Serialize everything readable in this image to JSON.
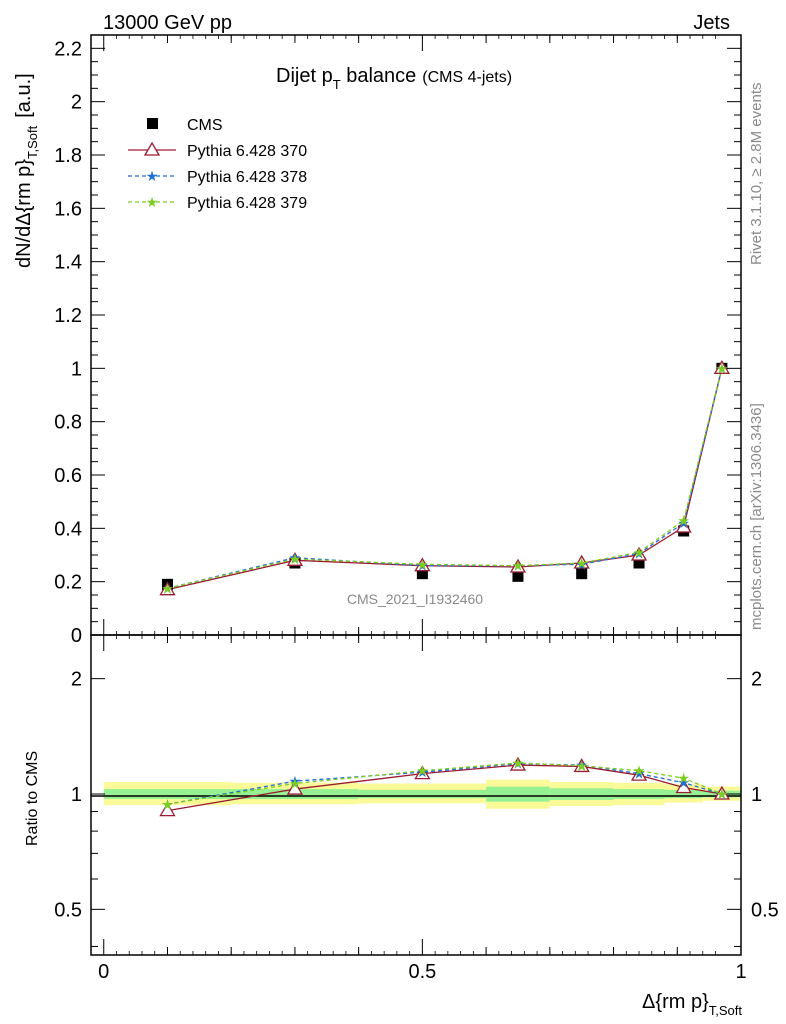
{
  "header": {
    "left": "13000 GeV pp",
    "right": "Jets"
  },
  "side_labels": {
    "rivet": "Rivet 3.1.10, ≥ 2.8M events",
    "mcplots": "mcplots.cern.ch [arXiv:1306.3436]"
  },
  "watermark": "CMS_2021_I1932460",
  "chart_data": [
    {
      "type": "line",
      "title_main": "Dijet p",
      "title_sub": "T",
      "title_rest": " balance",
      "title_small": "(CMS 4-jets)",
      "ylabel_main": "dN/dΔ{rm p}",
      "ylabel_sub": "T,Soft",
      "ylabel_unit": "[a.u.]",
      "ylim": [
        0,
        2.25
      ],
      "yticks": [
        0,
        0.2,
        0.4,
        0.6,
        0.8,
        1,
        1.2,
        1.4,
        1.6,
        1.8,
        2,
        2.2
      ],
      "ytick_labels": [
        "0",
        "0.2",
        "0.4",
        "0.6",
        "0.8",
        "1",
        "1.2",
        "1.4",
        "1.6",
        "1.8",
        "2",
        "2.2"
      ],
      "xlim": [
        -0.02,
        1.0
      ],
      "x": [
        0.1,
        0.3,
        0.5,
        0.65,
        0.75,
        0.84,
        0.91,
        0.97
      ],
      "legend_position": "top-left",
      "series": [
        {
          "name": "CMS",
          "color": "#000000",
          "marker": "square",
          "values": [
            0.19,
            0.27,
            0.23,
            0.22,
            0.23,
            0.27,
            0.39,
            1.0
          ]
        },
        {
          "name": "Pythia 6.428 370",
          "color": "#9b1b30",
          "marker": "triangle",
          "values": [
            0.17,
            0.28,
            0.26,
            0.255,
            0.27,
            0.3,
            0.405,
            1.0
          ]
        },
        {
          "name": "Pythia 6.428 378",
          "color": "#1f6fd6",
          "marker": "star",
          "values": [
            0.175,
            0.29,
            0.26,
            0.26,
            0.265,
            0.305,
            0.42,
            1.0
          ]
        },
        {
          "name": "Pythia 6.428 379",
          "color": "#7ccd1f",
          "marker": "star",
          "values": [
            0.175,
            0.285,
            0.265,
            0.26,
            0.27,
            0.31,
            0.43,
            1.0
          ]
        }
      ]
    },
    {
      "type": "line",
      "ylabel": "Ratio to CMS",
      "xlabel_main": "Δ{rm p}",
      "xlabel_sub": "T,Soft",
      "yscale": "log",
      "ylim": [
        0.38,
        2.6
      ],
      "yticks": [
        0.5,
        1,
        2
      ],
      "ytick_labels": [
        "0.5",
        "1",
        "2"
      ],
      "xlim": [
        -0.02,
        1.0
      ],
      "xticks": [
        0,
        0.5,
        1
      ],
      "xtick_labels": [
        "0",
        "0.5",
        "1"
      ],
      "x": [
        0.1,
        0.3,
        0.5,
        0.65,
        0.75,
        0.84,
        0.91,
        0.97
      ],
      "bands": {
        "edges": [
          0.0,
          0.2,
          0.4,
          0.6,
          0.7,
          0.8,
          0.88,
          0.94,
          1.0
        ],
        "outer": [
          [
            0.935,
            1.075
          ],
          [
            0.94,
            1.07
          ],
          [
            0.945,
            1.065
          ],
          [
            0.915,
            1.09
          ],
          [
            0.93,
            1.075
          ],
          [
            0.935,
            1.07
          ],
          [
            0.95,
            1.06
          ],
          [
            0.96,
            1.045
          ]
        ],
        "inner": [
          [
            0.97,
            1.03
          ],
          [
            0.97,
            1.03
          ],
          [
            0.975,
            1.025
          ],
          [
            0.955,
            1.045
          ],
          [
            0.965,
            1.035
          ],
          [
            0.97,
            1.03
          ],
          [
            0.975,
            1.025
          ],
          [
            0.98,
            1.02
          ]
        ]
      },
      "band_colors": {
        "outer": "#fbfa99",
        "inner": "#96f193"
      },
      "series": [
        {
          "name": "Pythia 6.428 370",
          "color": "#9b1b30",
          "marker": "triangle",
          "values": [
            0.905,
            1.03,
            1.13,
            1.19,
            1.18,
            1.12,
            1.04,
            1.0
          ]
        },
        {
          "name": "Pythia 6.428 378",
          "color": "#1f6fd6",
          "marker": "star",
          "values": [
            0.94,
            1.08,
            1.14,
            1.2,
            1.19,
            1.13,
            1.07,
            1.0
          ]
        },
        {
          "name": "Pythia 6.428 379",
          "color": "#7ccd1f",
          "marker": "star",
          "values": [
            0.94,
            1.065,
            1.15,
            1.205,
            1.185,
            1.15,
            1.1,
            1.0
          ]
        }
      ]
    }
  ]
}
